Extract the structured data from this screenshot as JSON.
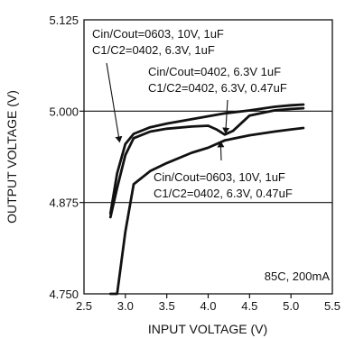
{
  "chart_data": {
    "type": "line",
    "xlabel": "INPUT VOLTAGE (V)",
    "ylabel": "OUTPUT VOLTAGE (V)",
    "xlim": [
      2.5,
      5.5
    ],
    "ylim": [
      4.75,
      5.125
    ],
    "x_ticks": [
      "2.5",
      "3.0",
      "3.5",
      "4.0",
      "4.5",
      "5.0",
      "5.5"
    ],
    "y_ticks": [
      "4.750",
      "4.875",
      "5.000",
      "5.125"
    ],
    "grid": "major lines at 4.875 and 5.000",
    "condition_label": "85C, 200mA",
    "series": [
      {
        "x": [
          2.82,
          2.9,
          3.0,
          3.1,
          3.3,
          3.5,
          3.8,
          4.0,
          4.2,
          4.5,
          4.8,
          5.0,
          5.15
        ],
        "y": [
          4.86,
          4.915,
          4.955,
          4.969,
          4.978,
          4.983,
          4.989,
          4.993,
          4.997,
          5.001,
          5.006,
          5.008,
          5.009
        ]
      },
      {
        "x": [
          2.82,
          2.9,
          3.0,
          3.1,
          3.3,
          3.5,
          3.8,
          4.0,
          4.1,
          4.2,
          4.3,
          4.5,
          4.8,
          5.0,
          5.15
        ],
        "y": [
          4.855,
          4.895,
          4.94,
          4.963,
          4.972,
          4.976,
          4.979,
          4.98,
          4.975,
          4.968,
          4.973,
          4.994,
          5.001,
          5.003,
          5.004
        ]
      },
      {
        "x": [
          2.82,
          2.9,
          3.0,
          3.1,
          3.3,
          3.5,
          3.8,
          4.0,
          4.2,
          4.5,
          4.8,
          5.0,
          5.15
        ],
        "y": [
          4.75,
          4.75,
          4.835,
          4.9,
          4.918,
          4.929,
          4.943,
          4.95,
          4.96,
          4.967,
          4.972,
          4.975,
          4.977
        ]
      }
    ],
    "annotations": [
      {
        "lines": [
          "Cin/Cout=0603, 10V, 1uF",
          "C1/C2=0402, 6.3V, 1uF"
        ],
        "arrow_to": {
          "x": 2.93,
          "y": 4.958
        }
      },
      {
        "lines": [
          "Cin/Cout=0402, 6.3V 1uF",
          "C1/C2=0402, 6.3V, 0.47uF"
        ],
        "arrow_to": {
          "x": 4.21,
          "y": 4.97
        }
      },
      {
        "lines": [
          "Cin/Cout=0603, 10V, 1uF",
          "C1/C2=0402, 6.3V, 0.47uF"
        ],
        "arrow_to": {
          "x": 4.15,
          "y": 4.958
        }
      }
    ]
  }
}
